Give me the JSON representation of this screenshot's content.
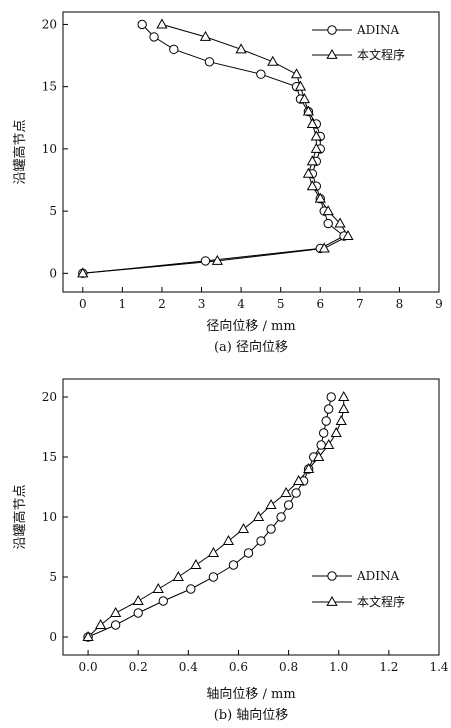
{
  "chart_data": [
    {
      "type": "line",
      "caption": "(a) 径向位移",
      "xlabel": "径向位移 / mm",
      "ylabel": "沿罐高节点",
      "xlim": [
        -0.5,
        9
      ],
      "ylim": [
        -1.5,
        21
      ],
      "xticks": [
        "0",
        "1",
        "2",
        "3",
        "4",
        "5",
        "6",
        "7",
        "8",
        "9"
      ],
      "yticks": [
        "0",
        "5",
        "10",
        "15",
        "20"
      ],
      "legend_position": "top-right",
      "series": [
        {
          "name": "ADINA",
          "marker": "circle",
          "x": [
            0,
            3.1,
            6.0,
            6.6,
            6.2,
            6.1,
            6.0,
            5.9,
            5.8,
            5.9,
            6.0,
            6.0,
            5.9,
            5.7,
            5.5,
            5.4,
            4.5,
            3.2,
            2.3,
            1.8,
            1.5
          ],
          "y": [
            0,
            1,
            2,
            3,
            4,
            5,
            6,
            7,
            8,
            9,
            10,
            11,
            12,
            13,
            14,
            15,
            16,
            17,
            18,
            19,
            20
          ]
        },
        {
          "name": "本文程序",
          "marker": "triangle",
          "x": [
            0,
            3.4,
            6.1,
            6.7,
            6.5,
            6.2,
            6.0,
            5.8,
            5.7,
            5.8,
            5.9,
            5.9,
            5.8,
            5.7,
            5.6,
            5.5,
            5.4,
            4.8,
            4.0,
            3.1,
            2.0
          ],
          "y": [
            0,
            1,
            2,
            3,
            4,
            5,
            6,
            7,
            8,
            9,
            10,
            11,
            12,
            13,
            14,
            15,
            16,
            17,
            18,
            19,
            20
          ]
        }
      ]
    },
    {
      "type": "line",
      "caption": "(b) 轴向位移",
      "xlabel": "轴向位移 / mm",
      "ylabel": "沿罐高节点",
      "xlim": [
        -0.1,
        1.4
      ],
      "ylim": [
        -1.5,
        21.5
      ],
      "xticks": [
        "0.0",
        "0.2",
        "0.4",
        "0.6",
        "0.8",
        "1.0",
        "1.2",
        "1.4"
      ],
      "yticks": [
        "0",
        "5",
        "10",
        "15",
        "20"
      ],
      "legend_position": "bottom-right",
      "series": [
        {
          "name": "ADINA",
          "marker": "circle",
          "x": [
            0,
            0.11,
            0.2,
            0.3,
            0.41,
            0.5,
            0.58,
            0.64,
            0.69,
            0.73,
            0.77,
            0.8,
            0.83,
            0.86,
            0.88,
            0.9,
            0.93,
            0.94,
            0.95,
            0.96,
            0.97
          ],
          "y": [
            0,
            1,
            2,
            3,
            4,
            5,
            6,
            7,
            8,
            9,
            10,
            11,
            12,
            13,
            14,
            15,
            16,
            17,
            18,
            19,
            20
          ]
        },
        {
          "name": "本文程序",
          "marker": "triangle",
          "x": [
            0,
            0.05,
            0.11,
            0.2,
            0.28,
            0.36,
            0.43,
            0.5,
            0.56,
            0.62,
            0.68,
            0.73,
            0.79,
            0.84,
            0.88,
            0.92,
            0.96,
            0.99,
            1.01,
            1.02,
            1.02
          ],
          "y": [
            0,
            1,
            2,
            3,
            4,
            5,
            6,
            7,
            8,
            9,
            10,
            11,
            12,
            13,
            14,
            15,
            16,
            17,
            18,
            19,
            20
          ]
        }
      ]
    }
  ]
}
